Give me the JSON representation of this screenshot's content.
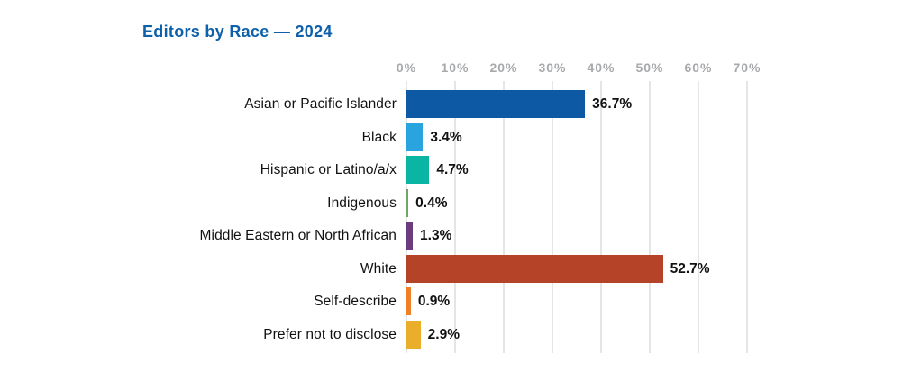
{
  "title": "Editors by Race — 2024",
  "colors": {
    "title": "#0f60ab",
    "axis_label": "#a7a9ac",
    "gridline": "#e4e5e7",
    "category_label": "#111111",
    "value_label": "#111111",
    "background": "#ffffff"
  },
  "chart_data": {
    "type": "bar",
    "orientation": "horizontal",
    "title": "Editors by Race — 2024",
    "categories": [
      "Asian or Pacific Islander",
      "Black",
      "Hispanic or Latino/a/x",
      "Indigenous",
      "Middle Eastern or North African",
      "White",
      "Self-describe",
      "Prefer not to disclose"
    ],
    "values": [
      36.7,
      3.4,
      4.7,
      0.4,
      1.3,
      52.7,
      0.9,
      2.9
    ],
    "value_labels": [
      "36.7%",
      "3.4%",
      "4.7%",
      "0.4%",
      "1.3%",
      "52.7%",
      "0.9%",
      "2.9%"
    ],
    "bar_colors": [
      "#0e59a4",
      "#2aa4de",
      "#0ab5a4",
      "#6ea763",
      "#6b3d7e",
      "#b54327",
      "#f08026",
      "#eaae2b"
    ],
    "x_ticks": [
      "0%",
      "10%",
      "20%",
      "30%",
      "40%",
      "50%",
      "60%",
      "70%"
    ],
    "xlabel": "",
    "ylabel": "",
    "xlim": [
      0,
      70
    ],
    "grid": "vertical",
    "legend": "none"
  }
}
